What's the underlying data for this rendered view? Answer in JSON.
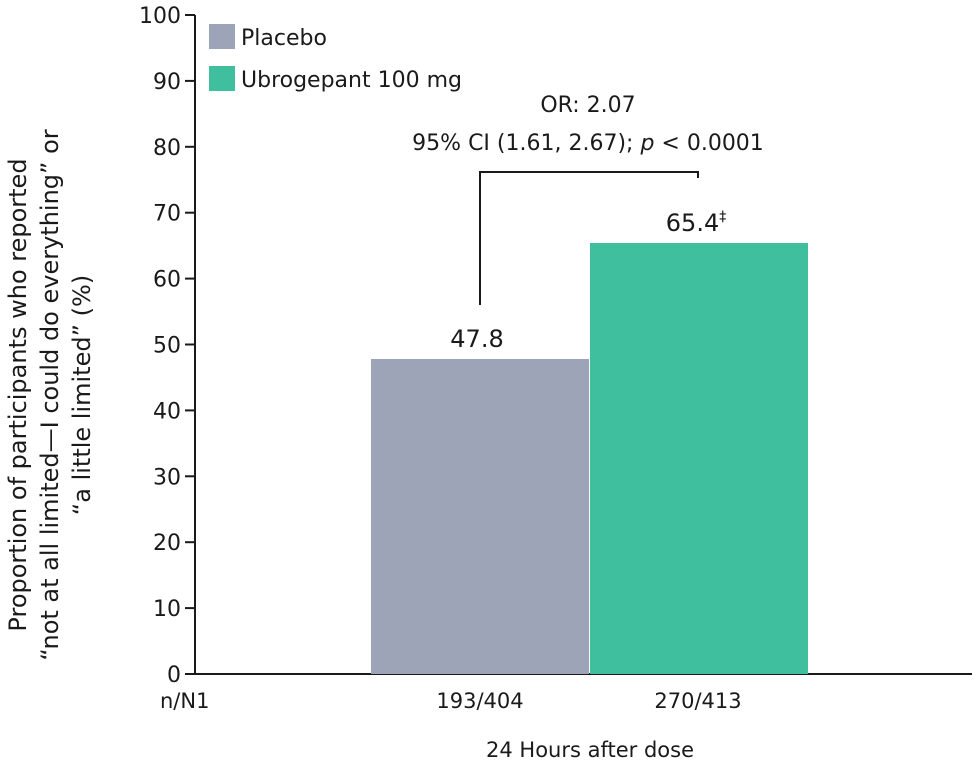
{
  "chart_data": {
    "type": "bar",
    "categories": [
      "Placebo",
      "Ubrogepant 100 mg"
    ],
    "values": [
      47.8,
      65.4
    ],
    "value_labels": [
      "47.8",
      "65.4"
    ],
    "value_label_suffix": [
      "",
      "‡"
    ],
    "colors": [
      "#9da4b7",
      "#3fbf9e"
    ],
    "ylim": [
      0,
      100
    ],
    "yticks": [
      0,
      10,
      20,
      30,
      40,
      50,
      60,
      70,
      80,
      90,
      100
    ],
    "ylabel_lines": [
      "Proportion of participants who reported",
      "“not at all limited—I could do everything” or",
      "“a little limited” (%)"
    ],
    "xlabel": "24 Hours after dose",
    "n_row_label": "n/N1",
    "n_values": [
      "193/404",
      "270/413"
    ],
    "legend": {
      "placement": "top-left",
      "entries": [
        "Placebo",
        "Ubrogepant 100 mg"
      ]
    },
    "annotation": {
      "line1": "OR: 2.07",
      "line2_prefix": "95% CI (1.61, 2.67); ",
      "line2_p": "p",
      "line2_suffix": " < 0.0001"
    }
  }
}
